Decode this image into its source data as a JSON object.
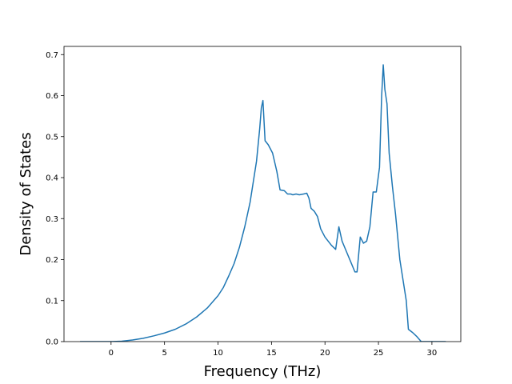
{
  "chart_data": {
    "type": "line",
    "xlabel": "Frequency (THz)",
    "ylabel": "Density of States",
    "xlim": [
      -4.4,
      32.7
    ],
    "ylim": [
      0,
      0.72
    ],
    "xticks": [
      0,
      5,
      10,
      15,
      20,
      25,
      30
    ],
    "yticks": [
      0.0,
      0.1,
      0.2,
      0.3,
      0.4,
      0.5,
      0.6,
      0.7
    ],
    "ytick_labels": [
      "0.0",
      "0.1",
      "0.2",
      "0.3",
      "0.4",
      "0.5",
      "0.6",
      "0.7"
    ],
    "grid": false,
    "series": [
      {
        "color": "#1f77b4",
        "x": [
          -2.9,
          0,
          1,
          2,
          3,
          4,
          5,
          6,
          7,
          8,
          9,
          10,
          10.5,
          11,
          11.5,
          12,
          12.5,
          13,
          13.3,
          13.6,
          13.9,
          14.05,
          14.2,
          14.4,
          14.7,
          15.1,
          15.5,
          15.8,
          16.2,
          16.5,
          16.8,
          17,
          17.3,
          17.6,
          18,
          18.3,
          18.5,
          18.7,
          19,
          19.3,
          19.6,
          20,
          20.3,
          20.6,
          21,
          21.3,
          21.6,
          22,
          22.4,
          22.8,
          23,
          23.3,
          23.6,
          23.9,
          24.2,
          24.5,
          24.8,
          25.1,
          25.3,
          25.45,
          25.6,
          25.8,
          26,
          26.3,
          26.6,
          27,
          27.3,
          27.6,
          27.8,
          28.2,
          28.6,
          29,
          31.3
        ],
        "y": [
          0,
          0,
          0.001,
          0.004,
          0.008,
          0.014,
          0.021,
          0.03,
          0.043,
          0.06,
          0.082,
          0.112,
          0.132,
          0.16,
          0.19,
          0.23,
          0.28,
          0.34,
          0.39,
          0.44,
          0.52,
          0.57,
          0.588,
          0.49,
          0.48,
          0.46,
          0.415,
          0.37,
          0.368,
          0.36,
          0.36,
          0.358,
          0.36,
          0.358,
          0.36,
          0.362,
          0.35,
          0.325,
          0.318,
          0.305,
          0.275,
          0.255,
          0.245,
          0.235,
          0.225,
          0.28,
          0.245,
          0.22,
          0.195,
          0.17,
          0.17,
          0.255,
          0.24,
          0.245,
          0.28,
          0.365,
          0.365,
          0.425,
          0.6,
          0.675,
          0.615,
          0.58,
          0.46,
          0.38,
          0.31,
          0.2,
          0.15,
          0.1,
          0.03,
          0.022,
          0.012,
          0,
          0
        ]
      }
    ]
  }
}
